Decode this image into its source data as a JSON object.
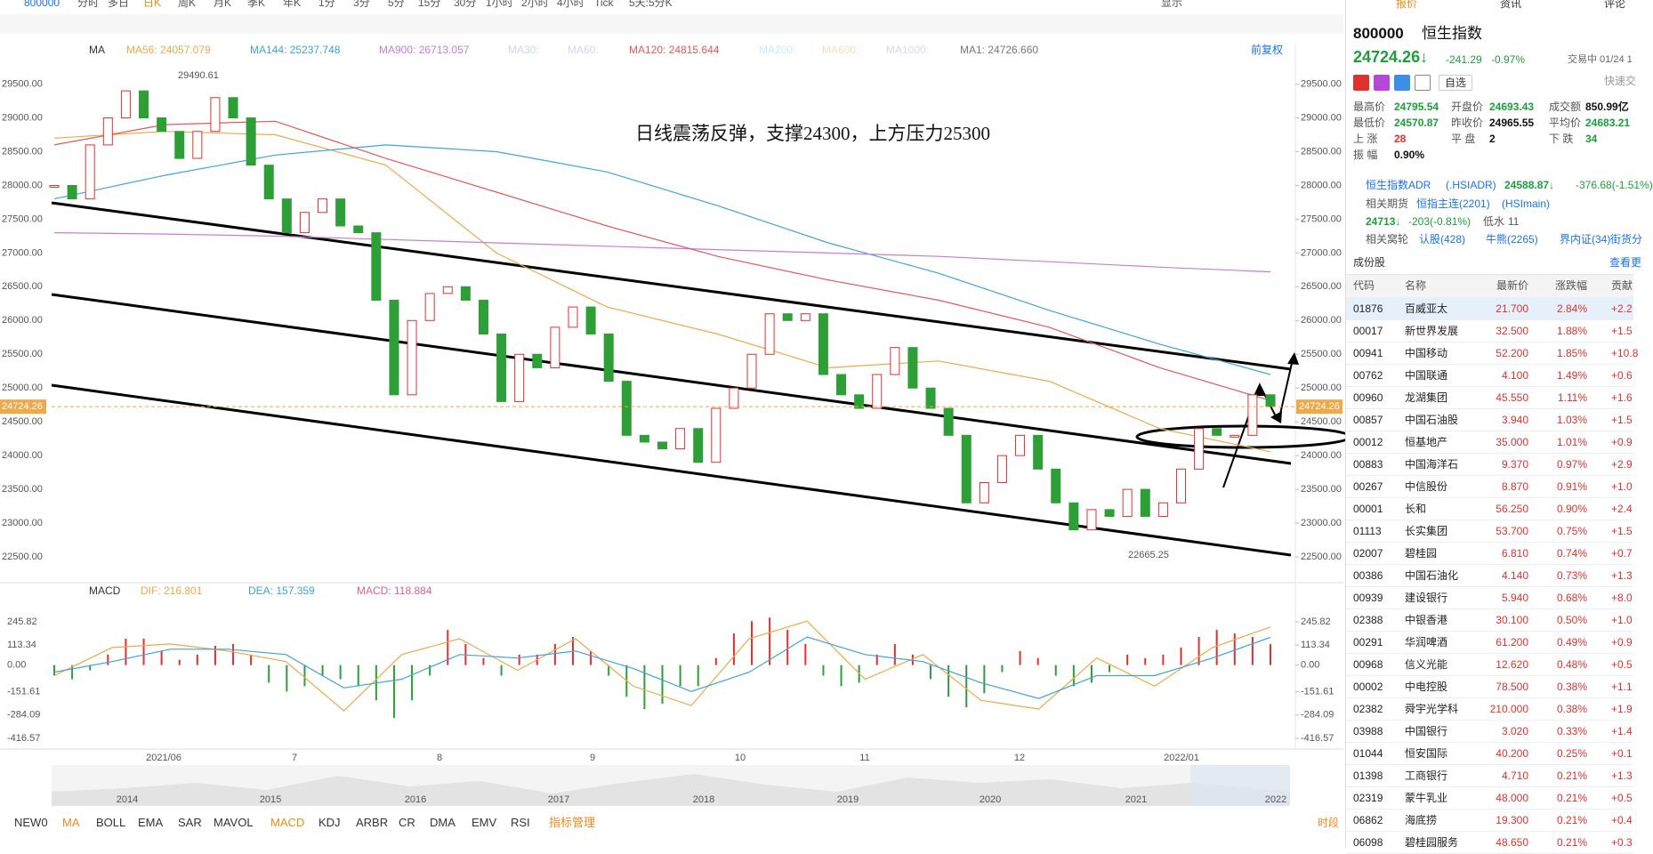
{
  "toolbar": {
    "symbol": "800000",
    "periods": [
      "分时",
      "多日",
      "日K",
      "周K",
      "月K",
      "季K",
      "年K",
      "1分",
      "3分",
      "5分",
      "15分",
      "30分",
      "1小时",
      "2小时",
      "4小时",
      "Tick",
      "5天:5分K"
    ],
    "display": "显示"
  },
  "ma_header": {
    "title": "MA",
    "items": [
      {
        "label": "MA30:",
        "color": "#c9d9f0"
      },
      {
        "label": "MA60:",
        "color": "#c9d9f0"
      },
      {
        "label": "MA200:",
        "color": "#c9eef5"
      },
      {
        "label": "MA600:",
        "color": "#f5e2b8"
      },
      {
        "label": "MA1000:",
        "color": "#d8d8e8"
      },
      {
        "label": "MA1: 24726.660",
        "color": "#777777"
      }
    ],
    "adjust": "前复权"
  },
  "chart_data": [
    {
      "type": "candlestick",
      "annotation": "日线震荡反弹，支撑24300，上方压力25300",
      "high_label": "29490.61",
      "low_label": "22665.25",
      "last_price": 24724.26,
      "closes": [
        28000,
        27800,
        28600,
        29000,
        29400,
        29000,
        28800,
        28400,
        28800,
        29300,
        29000,
        28300,
        27800,
        27300,
        27600,
        27800,
        27400,
        27300,
        26300,
        24900,
        26000,
        26400,
        26500,
        26300,
        25800,
        24800,
        25500,
        25300,
        25900,
        26200,
        25800,
        25100,
        24300,
        24200,
        24100,
        24400,
        23900,
        24700,
        25000,
        25500,
        26100,
        26000,
        26100,
        25200,
        24900,
        24700,
        25200,
        25600,
        25000,
        24700,
        24300,
        23300,
        23600,
        24000,
        24300,
        23800,
        23300,
        22900,
        23200,
        23100,
        23500,
        23100,
        23300,
        23800,
        24400,
        24300,
        24300,
        24900,
        24724.26
      ],
      "up_color": "#e0312f",
      "down_color": "#2e9e37",
      "series": [
        {
          "label": "MA56: 24057.079",
          "color": "#efa84a",
          "values": [
            28700,
            28800,
            28750,
            28300,
            27000,
            26200,
            25800,
            25300,
            25400,
            25100,
            24400,
            24057
          ]
        },
        {
          "label": "MA144: 25237.748",
          "color": "#41a3d8",
          "values": [
            27800,
            28150,
            28450,
            28600,
            28500,
            28200,
            27700,
            27150,
            26700,
            26150,
            25650,
            25200
          ]
        },
        {
          "label": "MA900: 26713.057",
          "color": "#c87dd4",
          "values": [
            27300,
            27280,
            27250,
            27200,
            27150,
            27100,
            27050,
            27000,
            26950,
            26870,
            26790,
            26720
          ]
        },
        {
          "label": "MA120: 24815.644",
          "color": "#e05a5a",
          "values": [
            28600,
            28900,
            28950,
            28400,
            27900,
            27400,
            26950,
            26600,
            26300,
            25900,
            25300,
            24815
          ]
        }
      ],
      "ylim": [
        22250,
        29850
      ],
      "yticks": [
        {
          "value": 22500,
          "label": "22500.00"
        },
        {
          "value": 23000,
          "label": "23000.00"
        },
        {
          "value": 23500,
          "label": "23500.00"
        },
        {
          "value": 24000,
          "label": "24000.00"
        },
        {
          "value": 24500,
          "label": "24500.00"
        },
        {
          "value": 25000,
          "label": "25000.00"
        },
        {
          "value": 25500,
          "label": "25500.00"
        },
        {
          "value": 26000,
          "label": "26000.00"
        },
        {
          "value": 26500,
          "label": "26500.00"
        },
        {
          "value": 27000,
          "label": "27000.00"
        },
        {
          "value": 27500,
          "label": "27500.00"
        },
        {
          "value": 28000,
          "label": "28000.00"
        },
        {
          "value": 28500,
          "label": "28500.00"
        },
        {
          "value": 29000,
          "label": "29000.00"
        },
        {
          "value": 29500,
          "label": "29500.00"
        }
      ],
      "x_axis_labels": [
        "2021/06",
        "7",
        "8",
        "9",
        "10",
        "11",
        "12",
        "2022/01"
      ]
    },
    {
      "type": "bar",
      "title": "MACD",
      "macd_label": "MACD: 118.884",
      "macd_color": "#e0609a",
      "values": [
        -60,
        -80,
        -30,
        60,
        150,
        150,
        80,
        30,
        60,
        110,
        120,
        60,
        -100,
        -150,
        -120,
        -60,
        -80,
        -120,
        -200,
        -300,
        -200,
        -60,
        200,
        120,
        40,
        -60,
        60,
        60,
        120,
        160,
        80,
        -60,
        -180,
        -250,
        -220,
        -120,
        -120,
        40,
        180,
        250,
        270,
        200,
        120,
        -60,
        -120,
        -100,
        60,
        120,
        60,
        -80,
        -180,
        -240,
        -160,
        -40,
        80,
        40,
        -60,
        -120,
        -100,
        -40,
        60,
        40,
        60,
        100,
        160,
        200,
        180,
        160,
        118.884
      ],
      "series": [
        {
          "label": "DIF: 216.801",
          "color": "#efa84a",
          "values": [
            -60,
            100,
            120,
            80,
            20,
            -260,
            60,
            150,
            -30,
            150,
            -120,
            -230,
            150,
            250,
            -80,
            60,
            -200,
            -250,
            40,
            -120,
            100,
            216.8
          ]
        },
        {
          "label": "DEA: 157.359",
          "color": "#41a3d8",
          "values": [
            -40,
            20,
            90,
            90,
            60,
            -130,
            -80,
            60,
            40,
            80,
            -20,
            -150,
            -40,
            160,
            60,
            20,
            -100,
            -190,
            -60,
            -60,
            40,
            157.4
          ]
        }
      ],
      "ylim": [
        -467,
        342
      ],
      "yticks": [
        245.82,
        113.34,
        {
          "value": 0,
          "label": "0.00"
        },
        -151.61,
        -284.09,
        -416.57
      ]
    }
  ],
  "navigator": {
    "years": [
      "2014",
      "2015",
      "2016",
      "2017",
      "2018",
      "2019",
      "2020",
      "2021",
      "2022"
    ]
  },
  "indicator_tabs": {
    "items": [
      "NEW0",
      "MA",
      "BOLL",
      "EMA",
      "SAR",
      "MAVOL",
      "MACD",
      "KDJ",
      "ARBR",
      "CR",
      "DMA",
      "EMV",
      "RSI",
      "指标管理"
    ],
    "period": "时段"
  },
  "quote": {
    "tabs": [
      "报价",
      "资讯",
      "评论"
    ],
    "code": "800000",
    "name": "恒生指数",
    "price": "24724.26↓",
    "change": "-241.29",
    "pct": "-0.97%",
    "status": "交易中 01/24 1",
    "watch": "自选",
    "trade": "快速交",
    "stats": [
      [
        "最高价",
        "24795.54",
        "开盘价",
        "24693.43",
        "成交额",
        "850.99亿"
      ],
      [
        "最低价",
        "24570.87",
        "昨收价",
        "24965.55",
        "平均价",
        "24683.21"
      ],
      [
        "上 涨",
        "28",
        "平 盘",
        "2",
        "下 跌",
        "34"
      ],
      [
        "振 幅",
        "0.90%"
      ]
    ],
    "adr": {
      "label": "恒生指数ADR",
      "code": "(.HSIADR)",
      "price": "24588.87↓",
      "change": "-376.68(-1.51%)"
    },
    "futures": {
      "label": "相关期货",
      "name": "恒指主连(2201)",
      "code": "(HSImain)",
      "price": "24713↓",
      "change": "-203(-0.81%)",
      "basis_label": "低水",
      "basis": "11"
    },
    "warrants": {
      "label": "相关窝轮",
      "items": [
        "认股(428)",
        "牛熊(2265)",
        "界内证(34)",
        "街货分"
      ]
    }
  },
  "constituents": {
    "title": "成份股",
    "more": "查看更",
    "columns": [
      "代码",
      "名称",
      "最新价",
      "涨跌幅",
      "贡献"
    ],
    "rows": [
      [
        "01876",
        "百威亚太",
        "21.700",
        "2.84%",
        "+2.2"
      ],
      [
        "00017",
        "新世界发展",
        "32.500",
        "1.88%",
        "+1.5"
      ],
      [
        "00941",
        "中国移动",
        "52.200",
        "1.85%",
        "+10.8"
      ],
      [
        "00762",
        "中国联通",
        "4.100",
        "1.49%",
        "+0.6"
      ],
      [
        "00960",
        "龙湖集团",
        "45.550",
        "1.11%",
        "+1.6"
      ],
      [
        "00857",
        "中国石油股",
        "3.940",
        "1.03%",
        "+1.5"
      ],
      [
        "00012",
        "恒基地产",
        "35.000",
        "1.01%",
        "+0.9"
      ],
      [
        "00883",
        "中国海洋石",
        "9.370",
        "0.97%",
        "+2.9"
      ],
      [
        "00267",
        "中信股份",
        "8.870",
        "0.91%",
        "+1.0"
      ],
      [
        "00001",
        "长和",
        "56.250",
        "0.90%",
        "+2.4"
      ],
      [
        "01113",
        "长实集团",
        "53.700",
        "0.75%",
        "+1.5"
      ],
      [
        "02007",
        "碧桂园",
        "6.810",
        "0.74%",
        "+0.7"
      ],
      [
        "00386",
        "中国石油化",
        "4.140",
        "0.73%",
        "+1.3"
      ],
      [
        "00939",
        "建设银行",
        "5.940",
        "0.68%",
        "+8.0"
      ],
      [
        "02388",
        "中银香港",
        "30.100",
        "0.50%",
        "+1.0"
      ],
      [
        "00291",
        "华润啤酒",
        "61.200",
        "0.49%",
        "+0.9"
      ],
      [
        "00968",
        "信义光能",
        "12.620",
        "0.48%",
        "+0.5"
      ],
      [
        "00002",
        "中电控股",
        "78.500",
        "0.38%",
        "+1.1"
      ],
      [
        "02382",
        "舜宇光学科",
        "210.000",
        "0.38%",
        "+1.9"
      ],
      [
        "03988",
        "中国银行",
        "3.020",
        "0.33%",
        "+1.4"
      ],
      [
        "01044",
        "恒安国际",
        "40.200",
        "0.25%",
        "+0.1"
      ],
      [
        "01398",
        "工商银行",
        "4.710",
        "0.21%",
        "+1.3"
      ],
      [
        "02319",
        "蒙牛乳业",
        "48.000",
        "0.21%",
        "+0.5"
      ],
      [
        "06862",
        "海底捞",
        "19.300",
        "0.21%",
        "+0.4"
      ],
      [
        "06098",
        "碧桂园服务",
        "48.650",
        "0.21%",
        "+0.3"
      ]
    ]
  }
}
